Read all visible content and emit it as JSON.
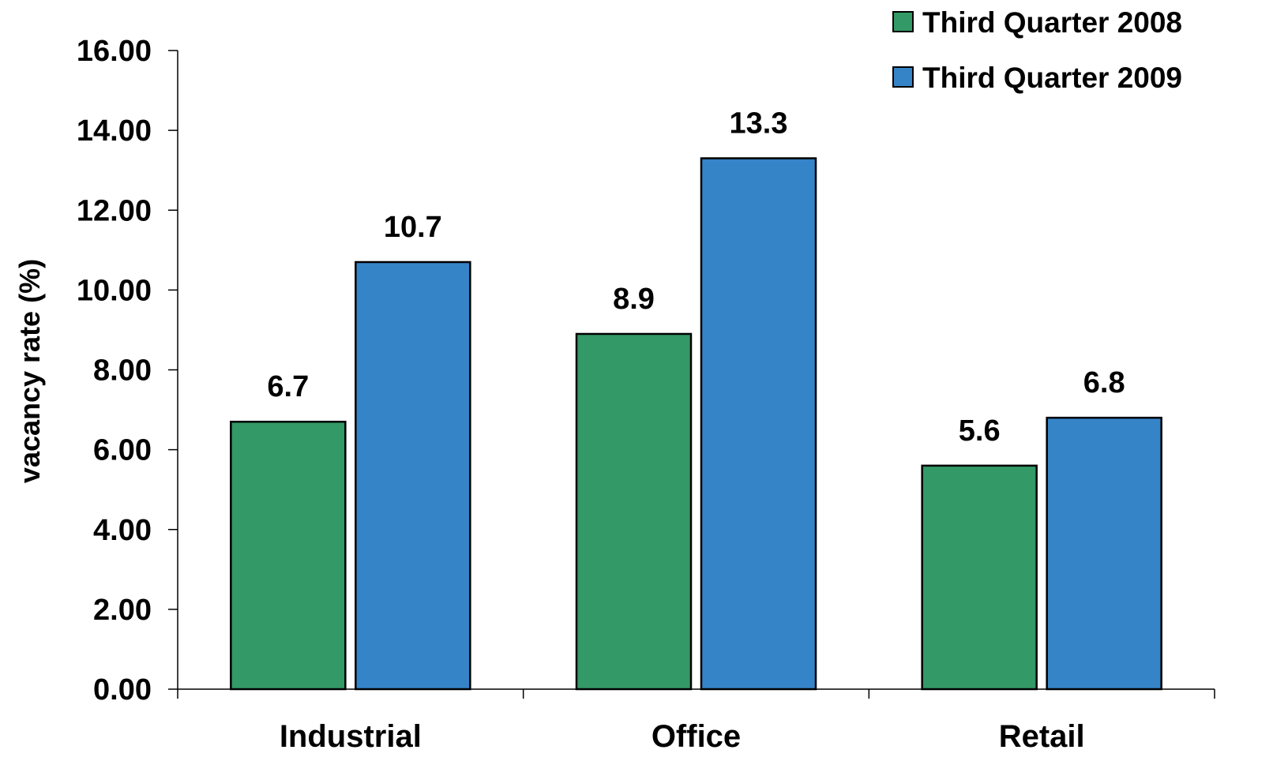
{
  "chart_data": {
    "type": "bar",
    "categories": [
      "Industrial",
      "Office",
      "Retail"
    ],
    "series": [
      {
        "name": "Third Quarter 2008",
        "values": [
          6.7,
          8.9,
          5.6
        ],
        "labels": [
          "6.7",
          "8.9",
          "5.6"
        ],
        "color": "#339966"
      },
      {
        "name": "Third Quarter 2009",
        "values": [
          10.7,
          13.3,
          6.8
        ],
        "labels": [
          "10.7",
          "13.3",
          "6.8"
        ],
        "color": "#3584C8"
      }
    ],
    "title": "",
    "xlabel": "",
    "ylabel": "vacancy rate (%)",
    "ylim": [
      0,
      16
    ],
    "yticks": [
      0,
      2,
      4,
      6,
      8,
      10,
      12,
      14,
      16
    ],
    "ytick_labels": [
      "0.00",
      "2.00",
      "4.00",
      "6.00",
      "8.00",
      "10.00",
      "12.00",
      "14.00",
      "16.00"
    ],
    "grid": false,
    "legend_position": "top-right"
  }
}
